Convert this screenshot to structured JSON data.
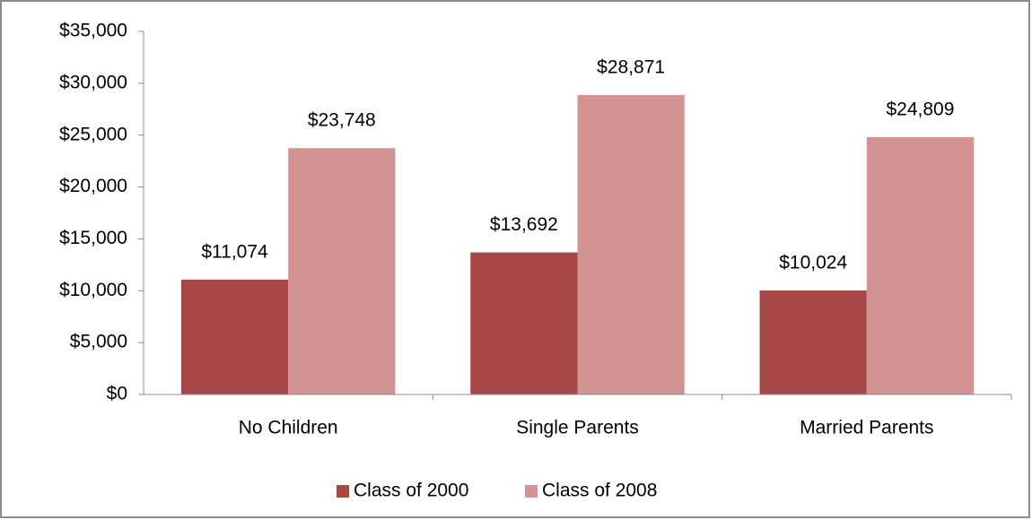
{
  "chart_data": {
    "type": "bar",
    "categories": [
      "No Children",
      "Single Parents",
      "Married Parents"
    ],
    "series": [
      {
        "name": "Class of 2000",
        "color": "#a84846",
        "values": [
          11074,
          13692,
          10024
        ],
        "value_labels": [
          "$11,074",
          "$13,692",
          "$10,024"
        ]
      },
      {
        "name": "Class of 2008",
        "color": "#d39392",
        "values": [
          23748,
          28871,
          24809
        ],
        "value_labels": [
          "$23,748",
          "$28,871",
          "$24,809"
        ]
      }
    ],
    "ylim": [
      0,
      35000
    ],
    "yticks": [
      {
        "value": 0,
        "label": "$0"
      },
      {
        "value": 5000,
        "label": "$5,000"
      },
      {
        "value": 10000,
        "label": "$10,000"
      },
      {
        "value": 15000,
        "label": "$15,000"
      },
      {
        "value": 20000,
        "label": "$20,000"
      },
      {
        "value": 25000,
        "label": "$25,000"
      },
      {
        "value": 30000,
        "label": "$30,000"
      },
      {
        "value": 35000,
        "label": "$35,000"
      }
    ],
    "grid": false,
    "legend": "bottom"
  }
}
